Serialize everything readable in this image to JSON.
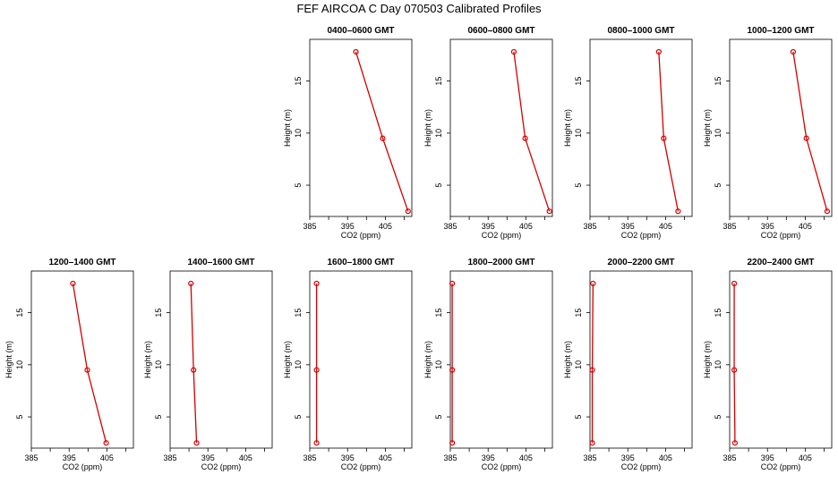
{
  "title": "FEF AIRCOA C  Day 070503  Calibrated Profiles",
  "chart_data": {
    "type": "line",
    "orientation": "profile (x = CO2, y = height)",
    "xlabel": "CO2 (ppm)",
    "ylabel": "Height (m)",
    "xlim": [
      385,
      412
    ],
    "ylim": [
      2,
      19
    ],
    "xticks": [
      385,
      390,
      395,
      400,
      405,
      410
    ],
    "xtick_labels": [
      "385",
      "",
      "395",
      "",
      "405",
      ""
    ],
    "yticks": [
      5,
      10,
      15
    ],
    "grid": false,
    "panels": [
      {
        "title": "0400–0600 GMT",
        "co2": [
          397.2,
          404.3,
          411.0
        ],
        "height": [
          17.8,
          9.5,
          2.5
        ]
      },
      {
        "title": "0600–0800 GMT",
        "co2": [
          401.8,
          404.8,
          411.2
        ],
        "height": [
          17.8,
          9.5,
          2.5
        ]
      },
      {
        "title": "0800–1000 GMT",
        "co2": [
          403.2,
          404.5,
          408.3
        ],
        "height": [
          17.8,
          9.5,
          2.5
        ]
      },
      {
        "title": "1000–1200 GMT",
        "co2": [
          401.8,
          405.3,
          410.8
        ],
        "height": [
          17.8,
          9.5,
          2.5
        ]
      },
      {
        "title": "1200–1400 GMT",
        "co2": [
          396.0,
          399.8,
          404.8
        ],
        "height": [
          17.8,
          9.5,
          2.5
        ]
      },
      {
        "title": "1400–1600 GMT",
        "co2": [
          390.5,
          391.2,
          392.0
        ],
        "height": [
          17.8,
          9.5,
          2.5
        ]
      },
      {
        "title": "1600–1800 GMT",
        "co2": [
          386.8,
          386.8,
          386.8
        ],
        "height": [
          17.8,
          9.5,
          2.5
        ]
      },
      {
        "title": "1800–2000 GMT",
        "co2": [
          385.5,
          385.5,
          385.5
        ],
        "height": [
          17.8,
          9.5,
          2.5
        ]
      },
      {
        "title": "2000–2200 GMT",
        "co2": [
          385.8,
          385.6,
          385.6
        ],
        "height": [
          17.8,
          9.5,
          2.5
        ]
      },
      {
        "title": "2200–2400 GMT",
        "co2": [
          386.2,
          386.2,
          386.4
        ],
        "height": [
          17.8,
          9.5,
          2.5
        ]
      }
    ]
  }
}
